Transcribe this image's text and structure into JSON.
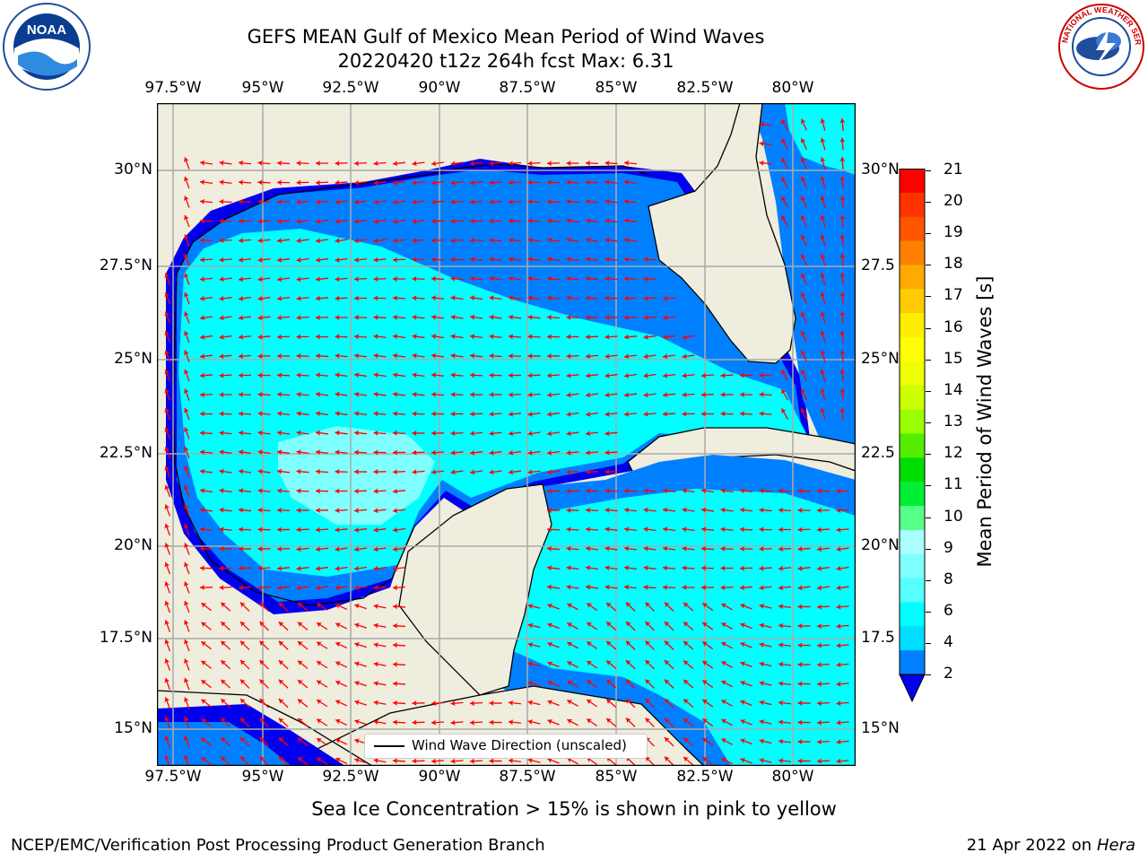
{
  "header": {
    "title_line1": "GEFS MEAN Gulf of Mexico Mean Period of Wind Waves",
    "title_line2": "20220420 t12z 264h fcst   Max: 6.31"
  },
  "logos": {
    "left": "NOAA",
    "left_ring_text": "NATIONAL OCEANIC AND ATMOSPHERIC ADMINISTRATION · U.S. DEPARTMENT OF COMMERCE",
    "right_ring_text": "NATIONAL WEATHER SERVICE"
  },
  "map": {
    "lon_labels": [
      "97.5°W",
      "95°W",
      "92.5°W",
      "90°W",
      "87.5°W",
      "85°W",
      "82.5°W",
      "80°W"
    ],
    "lat_labels_left": [
      "30°N",
      "27.5°N",
      "25°N",
      "22.5°N",
      "20°N",
      "17.5°N",
      "15°N"
    ],
    "lat_labels_right": [
      "30°N",
      "27.5",
      "25°N",
      "22.5",
      "20°N",
      "17.5",
      "15°N"
    ],
    "legend_label": "Wind Wave Direction (unscaled)",
    "ocean_colors": {
      "deep": "#0000ee",
      "mid": "#0080ff",
      "light": "#00ffff",
      "pale": "#80ffff"
    },
    "land_color": "#efedde",
    "arrow_color": "#ff0000"
  },
  "colorbar": {
    "label": "Mean Period of Wind Waves [s]",
    "ticks": [
      "21",
      "20",
      "19",
      "18",
      "17",
      "16",
      "15",
      "14",
      "13",
      "12",
      "11",
      "10",
      "9",
      "8",
      "6",
      "4",
      "2"
    ],
    "colors": [
      "#ff0000",
      "#ff3300",
      "#ff5500",
      "#ff8000",
      "#ffaa00",
      "#ffcc00",
      "#ffee00",
      "#ffff00",
      "#eeff00",
      "#ccff00",
      "#99ff00",
      "#55ee00",
      "#00dd00",
      "#00ee33",
      "#55ff88",
      "#aaffff",
      "#80ffff",
      "#55ffff",
      "#00ffff",
      "#00ddff",
      "#0080ff"
    ],
    "extend_color": "#0000ee"
  },
  "caption": "Sea Ice Concentration > 15% is shown in pink to yellow",
  "footer": {
    "left": "NCEP/EMC/Verification Post Processing Product Generation Branch",
    "date": "21 Apr 2022 on ",
    "machine": "Hera"
  }
}
